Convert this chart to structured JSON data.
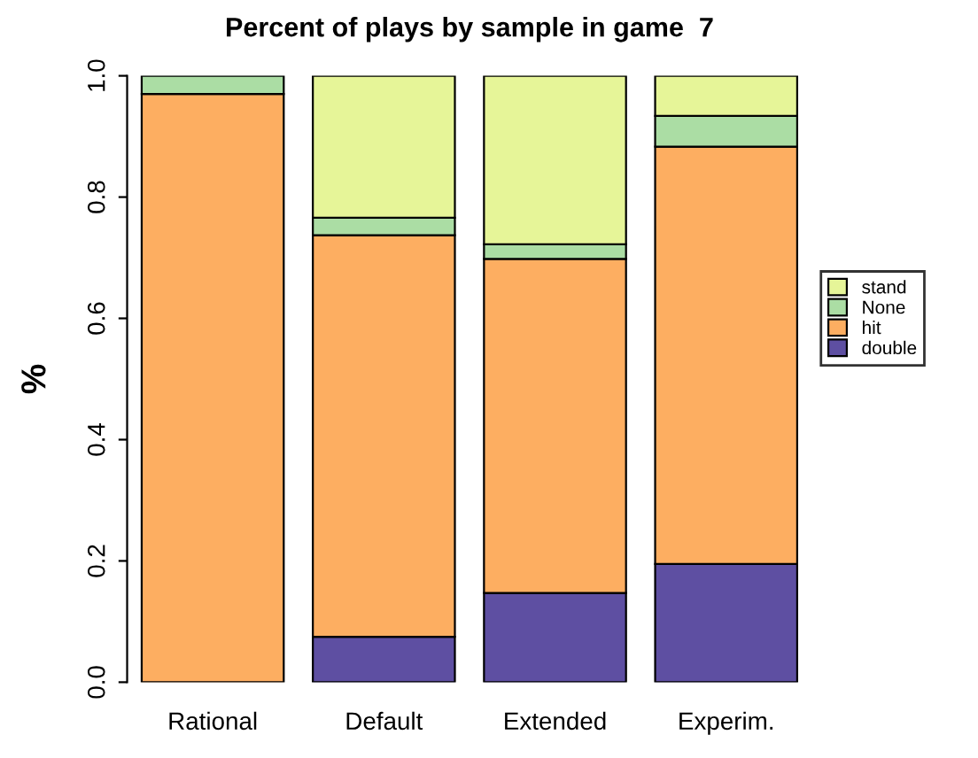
{
  "chart_data": {
    "type": "bar",
    "title": "Percent of plays by sample in game  7",
    "ylabel": "%",
    "categories": [
      "Rational",
      "Default",
      "Extended",
      "Experim."
    ],
    "stacked": true,
    "ylim": [
      0,
      1
    ],
    "yticks": [
      {
        "value": 0,
        "label": "0.0"
      },
      0.2,
      0.4,
      0.6,
      0.8,
      {
        "value": 1,
        "label": "1.0"
      }
    ],
    "grid": false,
    "legend": "right",
    "series": [
      {
        "name": "double",
        "color": "#5e4fa2",
        "values": [
          null,
          0.075,
          0.147,
          0.195
        ]
      },
      {
        "name": "hit",
        "color": "#fdae61",
        "values": [
          0.97,
          0.662,
          0.551,
          0.688
        ]
      },
      {
        "name": "None",
        "color": "#abdda4",
        "values": [
          0.03,
          0.029,
          0.024,
          0.051
        ]
      },
      {
        "name": "stand",
        "color": "#e6f598",
        "values": [
          null,
          0.234,
          0.278,
          0.066
        ]
      }
    ]
  }
}
